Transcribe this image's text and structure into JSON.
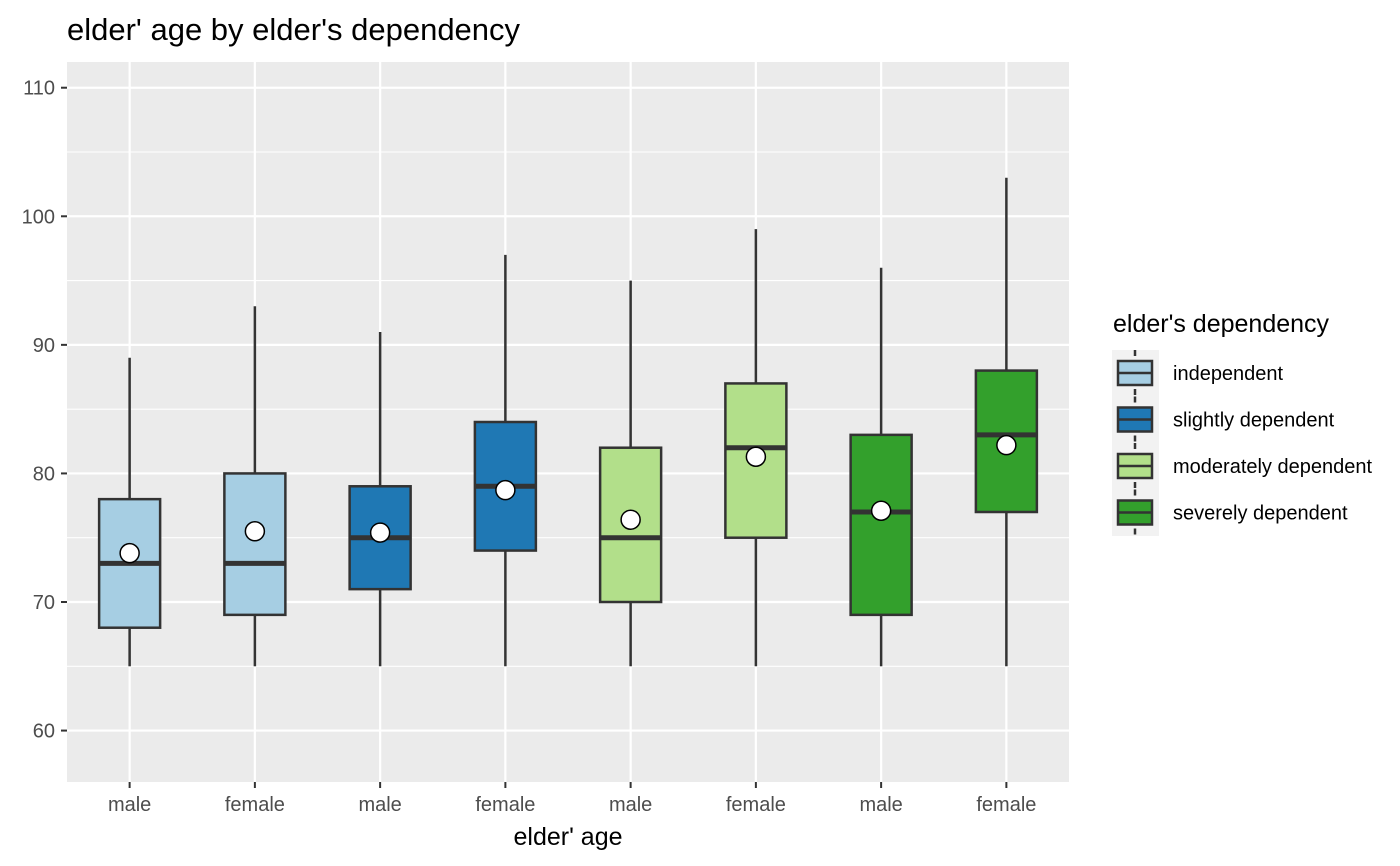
{
  "chart_data": {
    "type": "boxplot",
    "title": "elder' age by elder's dependency",
    "xlabel": "elder' age",
    "ylabel": "",
    "ylim": [
      56,
      112
    ],
    "yticks": [
      60,
      70,
      80,
      90,
      100,
      110
    ],
    "categories": [
      "male",
      "female",
      "male",
      "female",
      "male",
      "female",
      "male",
      "female"
    ],
    "legend": {
      "title": "elder's dependency",
      "position": "right",
      "entries": [
        {
          "label": "independent",
          "color": "#A6CEE3"
        },
        {
          "label": "slightly dependent",
          "color": "#1F78B4"
        },
        {
          "label": "moderately dependent",
          "color": "#B2DF8A"
        },
        {
          "label": "severely dependent",
          "color": "#33A02C"
        }
      ]
    },
    "boxes": [
      {
        "category": "male",
        "group": 0,
        "min": 65,
        "q1": 68,
        "median": 73,
        "q3": 78,
        "max": 89,
        "mean": 73.8
      },
      {
        "category": "female",
        "group": 0,
        "min": 65,
        "q1": 69,
        "median": 73,
        "q3": 80,
        "max": 93,
        "mean": 75.5
      },
      {
        "category": "male",
        "group": 1,
        "min": 65,
        "q1": 71,
        "median": 75,
        "q3": 79,
        "max": 91,
        "mean": 75.4
      },
      {
        "category": "female",
        "group": 1,
        "min": 65,
        "q1": 74,
        "median": 79,
        "q3": 84,
        "max": 97,
        "mean": 78.7
      },
      {
        "category": "male",
        "group": 2,
        "min": 65,
        "q1": 70,
        "median": 75,
        "q3": 82,
        "max": 95,
        "mean": 76.4
      },
      {
        "category": "female",
        "group": 2,
        "min": 65,
        "q1": 75,
        "median": 82,
        "q3": 87,
        "max": 99,
        "mean": 81.3
      },
      {
        "category": "male",
        "group": 3,
        "min": 65,
        "q1": 69,
        "median": 77,
        "q3": 83,
        "max": 96,
        "mean": 77.1
      },
      {
        "category": "female",
        "group": 3,
        "min": 65,
        "q1": 77,
        "median": 83,
        "q3": 88,
        "max": 103,
        "mean": 82.2
      }
    ]
  }
}
